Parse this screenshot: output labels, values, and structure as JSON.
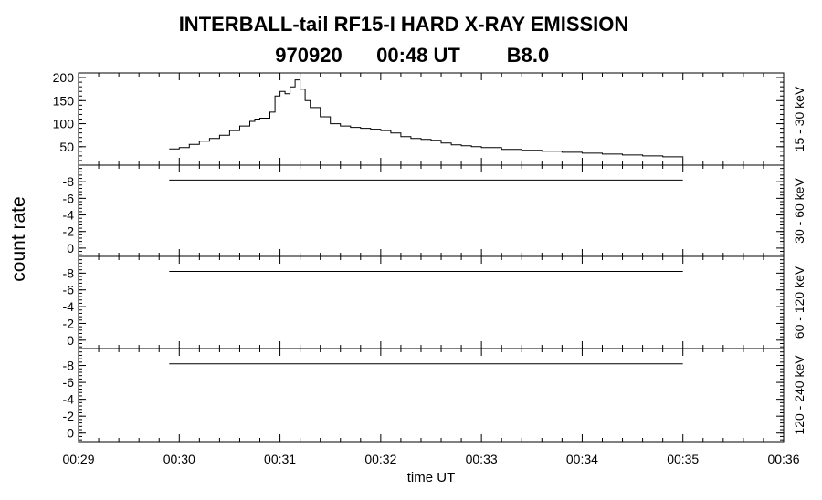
{
  "title": {
    "line1": "INTERBALL-tail  RF15-I  HARD  X-RAY  EMISSION",
    "date": "970920",
    "time": "00:48 UT",
    "class": "B8.0"
  },
  "chart_data": {
    "type": "line",
    "ylabel": "count rate",
    "xlabel": "time UT",
    "x_unit": "minutes after 00:00 UT",
    "xlim": [
      29,
      36
    ],
    "x_ticks": [
      "00:29",
      "00:30",
      "00:31",
      "00:32",
      "00:33",
      "00:34",
      "00:35",
      "00:36"
    ],
    "line_color": "#000000",
    "panels": [
      {
        "name": "15 - 30 keV",
        "ylim": [
          10,
          210
        ],
        "y_ticks": [
          50,
          100,
          150,
          200
        ],
        "step": true,
        "x": [
          29.9,
          30.0,
          30.1,
          30.2,
          30.3,
          30.4,
          30.5,
          30.6,
          30.7,
          30.75,
          30.8,
          30.9,
          30.95,
          31.0,
          31.05,
          31.1,
          31.15,
          31.2,
          31.25,
          31.3,
          31.4,
          31.5,
          31.6,
          31.7,
          31.8,
          31.9,
          32.0,
          32.1,
          32.2,
          32.3,
          32.4,
          32.5,
          32.6,
          32.7,
          32.8,
          32.9,
          33.0,
          33.2,
          33.4,
          33.6,
          33.8,
          34.0,
          34.2,
          34.4,
          34.6,
          34.8,
          35.0
        ],
        "y": [
          45,
          48,
          55,
          62,
          68,
          75,
          85,
          95,
          105,
          110,
          112,
          125,
          160,
          170,
          165,
          180,
          195,
          175,
          150,
          135,
          115,
          100,
          95,
          92,
          90,
          88,
          85,
          80,
          72,
          68,
          66,
          64,
          58,
          54,
          52,
          50,
          48,
          44,
          42,
          40,
          38,
          36,
          34,
          32,
          30,
          28,
          26
        ]
      },
      {
        "name": "30 - 60 keV",
        "ylim": [
          1,
          -10
        ],
        "y_ticks": [
          -8,
          -6,
          -4,
          -2,
          0
        ],
        "step": false,
        "x": [
          29.9,
          35.0
        ],
        "y": [
          -8.2,
          -8.2
        ]
      },
      {
        "name": "60 - 120 keV",
        "ylim": [
          1,
          -10
        ],
        "y_ticks": [
          -8,
          -6,
          -4,
          -2,
          0
        ],
        "step": false,
        "x": [
          29.9,
          35.0
        ],
        "y": [
          -8.2,
          -8.2
        ]
      },
      {
        "name": "120 - 240 keV",
        "ylim": [
          1,
          -10
        ],
        "y_ticks": [
          -8,
          -6,
          -4,
          -2,
          0
        ],
        "step": false,
        "x": [
          29.9,
          35.0
        ],
        "y": [
          -8.2,
          -8.2
        ]
      }
    ]
  }
}
